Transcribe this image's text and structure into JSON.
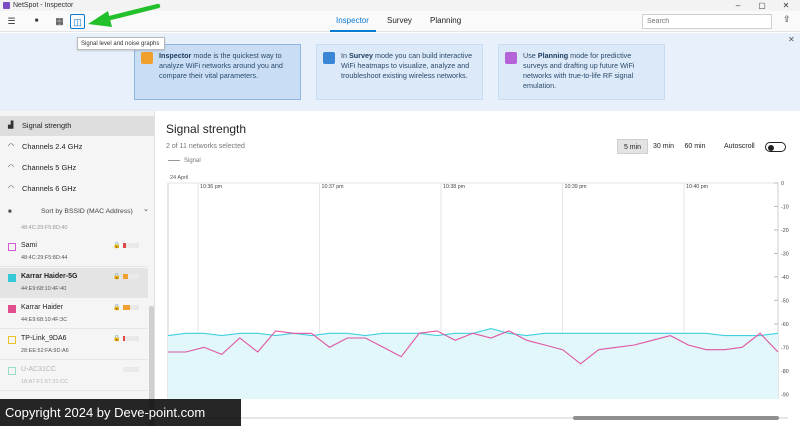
{
  "window": {
    "title": "NetSpot - Inspector",
    "controls": [
      "–",
      "▢",
      "✕"
    ]
  },
  "toolbar": {
    "menu_icon": "☰",
    "stop_icon": "■",
    "table_icon": "▦",
    "graph_icon": "◫",
    "tooltip": "Signal level and noise graphs"
  },
  "tabs": [
    {
      "label": "Inspector",
      "active": true
    },
    {
      "label": "Survey",
      "active": false
    },
    {
      "label": "Planning",
      "active": false
    }
  ],
  "search": {
    "placeholder": "Search"
  },
  "share_icon": "⇪",
  "banner": {
    "close": "✕",
    "cards": [
      {
        "bold": "Inspector",
        "text": " mode is the quickest way to analyze WiFi networks around you and compare their vital parameters.",
        "icon_color": "#f0a02c"
      },
      {
        "pre": "In ",
        "bold": "Survey",
        "text": " mode you can build interactive WiFi heatmaps to visualize, analyze and troubleshoot existing wireless networks.",
        "icon_color": "#3a86d6"
      },
      {
        "pre": "Use ",
        "bold": "Planning",
        "text": " mode for predictive surveys and drafting up future WiFi networks with true-to-life RF signal emulation.",
        "icon_color": "#b463d8"
      }
    ]
  },
  "sidebar": {
    "items": [
      {
        "label": "Signal strength",
        "icon": "▟",
        "active": true
      },
      {
        "label": "Channels 2.4 GHz",
        "icon": "◠",
        "active": false
      },
      {
        "label": "Channels 5 GHz",
        "icon": "◠",
        "active": false
      },
      {
        "label": "Channels 6 GHz",
        "icon": "◠",
        "active": false
      }
    ],
    "sort_label": "Sort by BSSID (MAC Address)",
    "sort_icon": "■",
    "sort_chevron": "⌄",
    "partial_mac": "48:4C:29:F5:8D:40",
    "networks": [
      {
        "name": "Sami",
        "mac": "48:4C:29:F5:8D:44",
        "checked": false,
        "color": "#d45ad1",
        "lock": "🔒",
        "signal": 0.2,
        "sig_color": "#e04848",
        "bold": false
      },
      {
        "name": "Karrar Haider-5G",
        "mac": "44:E9:68:10:4F:40",
        "checked": true,
        "color": "#33c9d6",
        "lock": "🔒",
        "signal": 0.3,
        "sig_color": "#f0a02c",
        "bold": true
      },
      {
        "name": "Karrar Haider",
        "mac": "44:E9:68:10:4F:3C",
        "checked": true,
        "color": "#e0508e",
        "lock": "🔒",
        "signal": 0.45,
        "sig_color": "#f0a02c",
        "bold": false
      },
      {
        "name": "TP-Link_9DA6",
        "mac": "28:EE:52:FA:9D:A6",
        "checked": false,
        "color": "#e8c62a",
        "lock": "🔒",
        "signal": 0.15,
        "sig_color": "#e04848",
        "bold": false
      },
      {
        "name": "U-AC31CC",
        "mac": "18:A7:F1:57:31:CC",
        "checked": false,
        "color": "#9bdcc7",
        "lock": "",
        "signal": 0.0,
        "sig_color": "#cccccc",
        "bold": false
      }
    ]
  },
  "main": {
    "title": "Signal strength",
    "subtitle": "2 of 11 networks selected",
    "legend": "Signal",
    "ranges": [
      {
        "label": "5 min",
        "active": true
      },
      {
        "label": "30 min",
        "active": false
      },
      {
        "label": "60 min",
        "active": false
      }
    ],
    "autoscroll": "Autoscroll",
    "autoscroll_on": false
  },
  "chart_data": {
    "type": "line",
    "date_label": "24 April",
    "x_ticks": [
      "10:36 pm",
      "10:37 pm",
      "10:38 pm",
      "10:39 pm",
      "10:40 pm"
    ],
    "y_ticks": [
      0,
      -10,
      -20,
      -30,
      -40,
      -50,
      -60,
      -70,
      -80,
      -90
    ],
    "ylim": [
      0,
      -92
    ],
    "series": [
      {
        "color": "#40d0df",
        "fill": "#e2f7f9",
        "values": [
          -65,
          -64,
          -64,
          -65,
          -64,
          -64,
          -65,
          -64,
          -65,
          -64,
          -64,
          -65,
          -64,
          -64,
          -64,
          -65,
          -64,
          -64,
          -62,
          -64,
          -65,
          -64,
          -64,
          -64,
          -64,
          -64,
          -64,
          -64,
          -64,
          -64,
          -64,
          -65,
          -65,
          -65,
          -64
        ]
      },
      {
        "color": "#df55a3",
        "values": [
          -72,
          -72,
          -70,
          -73,
          -66,
          -72,
          -63,
          -64,
          -64,
          -70,
          -66,
          -66,
          -70,
          -74,
          -64,
          -63,
          -67,
          -64,
          -66,
          -63,
          -67,
          -69,
          -71,
          -77,
          -71,
          -70,
          -69,
          -67,
          -65,
          -69,
          -71,
          -71,
          -70,
          -64,
          -72
        ]
      }
    ]
  },
  "copyright": "Copyright 2024 by Deve-point.com"
}
